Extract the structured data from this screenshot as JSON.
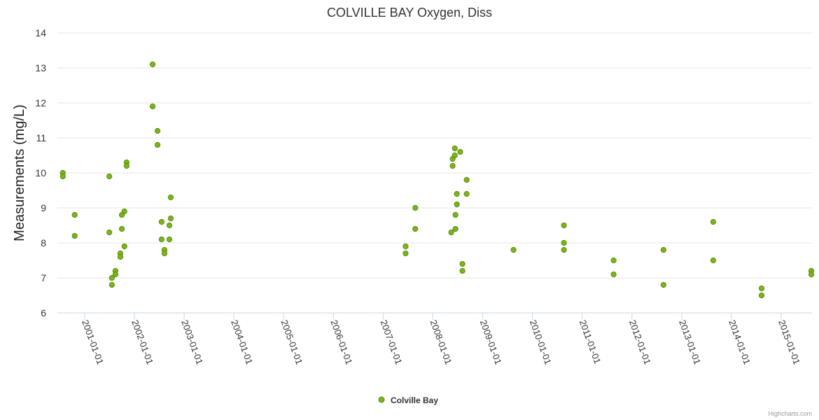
{
  "chart_data": {
    "type": "scatter",
    "title": "COLVILLE BAY Oxygen, Diss",
    "xlabel": "",
    "ylabel": "Measurements (mg/L)",
    "ylim": [
      6,
      14
    ],
    "yticks": [
      "6",
      "7",
      "8",
      "9",
      "10",
      "11",
      "12",
      "13",
      "14"
    ],
    "xlim": [
      "2000-06-15",
      "2015-08-15"
    ],
    "xticks": [
      "2001-01-01",
      "2002-01-01",
      "2003-01-01",
      "2004-01-01",
      "2005-01-01",
      "2006-01-01",
      "2007-01-01",
      "2008-01-01",
      "2009-01-01",
      "2010-01-01",
      "2011-01-01",
      "2012-01-01",
      "2013-01-01",
      "2014-01-01",
      "2015-01-01"
    ],
    "grid": true,
    "legend_position": "bottom-center",
    "series": [
      {
        "name": "Colville Bay",
        "color": "#7cb518",
        "edge_color": "#5a8a0f",
        "points": [
          [
            "2000-07-25",
            10.0
          ],
          [
            "2000-07-25",
            9.9
          ],
          [
            "2000-10-20",
            8.8
          ],
          [
            "2000-10-20",
            8.2
          ],
          [
            "2001-07-01",
            9.9
          ],
          [
            "2001-07-01",
            8.3
          ],
          [
            "2001-07-20",
            7.0
          ],
          [
            "2001-07-20",
            6.8
          ],
          [
            "2001-08-15",
            7.2
          ],
          [
            "2001-08-15",
            7.1
          ],
          [
            "2001-09-20",
            7.7
          ],
          [
            "2001-09-20",
            7.6
          ],
          [
            "2001-10-01",
            8.8
          ],
          [
            "2001-10-01",
            8.4
          ],
          [
            "2001-10-20",
            8.9
          ],
          [
            "2001-10-20",
            7.9
          ],
          [
            "2001-11-05",
            10.3
          ],
          [
            "2001-11-05",
            10.2
          ],
          [
            "2002-05-15",
            13.1
          ],
          [
            "2002-05-15",
            11.9
          ],
          [
            "2002-06-20",
            11.2
          ],
          [
            "2002-06-20",
            10.8
          ],
          [
            "2002-07-20",
            8.6
          ],
          [
            "2002-07-20",
            8.1
          ],
          [
            "2002-08-10",
            7.8
          ],
          [
            "2002-08-10",
            7.7
          ],
          [
            "2002-09-15",
            8.5
          ],
          [
            "2002-09-15",
            8.1
          ],
          [
            "2002-09-25",
            9.3
          ],
          [
            "2002-09-25",
            8.7
          ],
          [
            "2007-06-15",
            7.9
          ],
          [
            "2007-06-15",
            7.7
          ],
          [
            "2007-08-25",
            9.0
          ],
          [
            "2007-08-25",
            8.4
          ],
          [
            "2008-05-15",
            8.3
          ],
          [
            "2008-05-25",
            10.4
          ],
          [
            "2008-05-25",
            10.2
          ],
          [
            "2008-06-10",
            10.7
          ],
          [
            "2008-06-10",
            10.5
          ],
          [
            "2008-06-15",
            8.8
          ],
          [
            "2008-06-15",
            8.4
          ],
          [
            "2008-06-25",
            9.4
          ],
          [
            "2008-06-25",
            9.1
          ],
          [
            "2008-07-20",
            10.6
          ],
          [
            "2008-08-05",
            7.4
          ],
          [
            "2008-08-05",
            7.2
          ],
          [
            "2008-09-05",
            9.8
          ],
          [
            "2008-09-05",
            9.4
          ],
          [
            "2009-08-15",
            7.8
          ],
          [
            "2010-08-20",
            8.5
          ],
          [
            "2010-08-20",
            8.0
          ],
          [
            "2010-08-20",
            7.8
          ],
          [
            "2011-08-20",
            7.5
          ],
          [
            "2011-08-20",
            7.1
          ],
          [
            "2012-08-20",
            7.8
          ],
          [
            "2012-08-20",
            6.8
          ],
          [
            "2013-08-20",
            8.6
          ],
          [
            "2013-08-20",
            7.5
          ],
          [
            "2014-08-10",
            6.7
          ],
          [
            "2014-08-10",
            6.5
          ],
          [
            "2015-08-10",
            7.2
          ],
          [
            "2015-08-10",
            7.1
          ]
        ]
      }
    ]
  },
  "credits": "Highcharts.com"
}
